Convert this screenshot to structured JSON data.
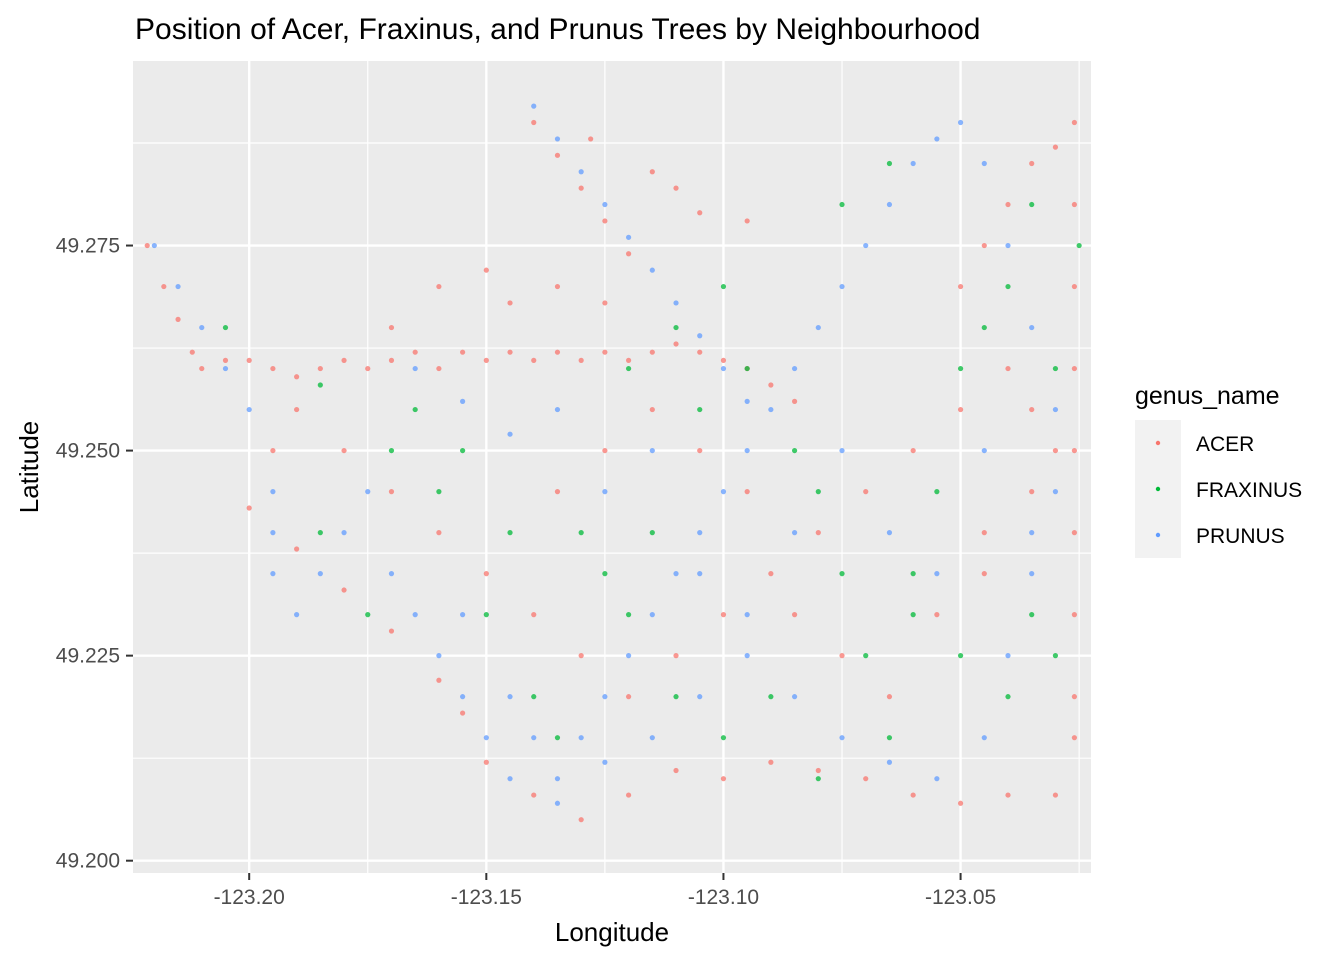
{
  "chart_data": {
    "type": "scatter",
    "title": "Position of Acer, Fraxinus, and Prunus Trees by Neighbourhood",
    "xlabel": "Longitude",
    "ylabel": "Latitude",
    "xlim": [
      -123.2245,
      -123.0225
    ],
    "ylim": [
      49.1985,
      49.2975
    ],
    "x_ticks": [
      {
        "value": -123.2,
        "label": "-123.20"
      },
      {
        "value": -123.15,
        "label": "-123.15"
      },
      {
        "value": -123.1,
        "label": "-123.10"
      },
      {
        "value": -123.05,
        "label": "-123.05"
      }
    ],
    "y_ticks": [
      {
        "value": 49.2,
        "label": "49.200"
      },
      {
        "value": 49.225,
        "label": "49.225"
      },
      {
        "value": 49.25,
        "label": "49.250"
      },
      {
        "value": 49.275,
        "label": "49.275"
      }
    ],
    "grid": true,
    "legend": {
      "title": "genus_name",
      "placement": "right",
      "entries": [
        "ACER",
        "FRAXINUS",
        "PRUNUS"
      ]
    },
    "series": [
      {
        "name": "ACER",
        "color": "#F8766D",
        "points": [
          [
            -123.2215,
            49.275
          ],
          [
            -123.218,
            49.27
          ],
          [
            -123.215,
            49.266
          ],
          [
            -123.212,
            49.262
          ],
          [
            -123.21,
            49.26
          ],
          [
            -123.205,
            49.261
          ],
          [
            -123.2,
            49.261
          ],
          [
            -123.195,
            49.26
          ],
          [
            -123.19,
            49.259
          ],
          [
            -123.185,
            49.26
          ],
          [
            -123.18,
            49.261
          ],
          [
            -123.175,
            49.26
          ],
          [
            -123.17,
            49.261
          ],
          [
            -123.165,
            49.262
          ],
          [
            -123.16,
            49.26
          ],
          [
            -123.155,
            49.262
          ],
          [
            -123.15,
            49.261
          ],
          [
            -123.145,
            49.262
          ],
          [
            -123.14,
            49.261
          ],
          [
            -123.135,
            49.262
          ],
          [
            -123.13,
            49.261
          ],
          [
            -123.125,
            49.262
          ],
          [
            -123.12,
            49.261
          ],
          [
            -123.115,
            49.262
          ],
          [
            -123.11,
            49.263
          ],
          [
            -123.105,
            49.262
          ],
          [
            -123.1,
            49.261
          ],
          [
            -123.095,
            49.26
          ],
          [
            -123.09,
            49.258
          ],
          [
            -123.085,
            49.256
          ],
          [
            -123.14,
            49.29
          ],
          [
            -123.135,
            49.286
          ],
          [
            -123.13,
            49.282
          ],
          [
            -123.125,
            49.278
          ],
          [
            -123.12,
            49.274
          ],
          [
            -123.128,
            49.288
          ],
          [
            -123.115,
            49.284
          ],
          [
            -123.11,
            49.282
          ],
          [
            -123.105,
            49.279
          ],
          [
            -123.095,
            49.278
          ],
          [
            -123.05,
            49.27
          ],
          [
            -123.045,
            49.275
          ],
          [
            -123.04,
            49.28
          ],
          [
            -123.035,
            49.285
          ],
          [
            -123.03,
            49.287
          ],
          [
            -123.026,
            49.29
          ],
          [
            -123.026,
            49.28
          ],
          [
            -123.026,
            49.27
          ],
          [
            -123.026,
            49.26
          ],
          [
            -123.026,
            49.25
          ],
          [
            -123.026,
            49.24
          ],
          [
            -123.026,
            49.23
          ],
          [
            -123.026,
            49.22
          ],
          [
            -123.026,
            49.215
          ],
          [
            -123.03,
            49.208
          ],
          [
            -123.04,
            49.208
          ],
          [
            -123.05,
            49.207
          ],
          [
            -123.06,
            49.208
          ],
          [
            -123.07,
            49.21
          ],
          [
            -123.08,
            49.211
          ],
          [
            -123.09,
            49.212
          ],
          [
            -123.1,
            49.21
          ],
          [
            -123.11,
            49.211
          ],
          [
            -123.12,
            49.208
          ],
          [
            -123.13,
            49.205
          ],
          [
            -123.14,
            49.208
          ],
          [
            -123.15,
            49.212
          ],
          [
            -123.155,
            49.218
          ],
          [
            -123.16,
            49.222
          ],
          [
            -123.17,
            49.228
          ],
          [
            -123.18,
            49.233
          ],
          [
            -123.19,
            49.238
          ],
          [
            -123.2,
            49.243
          ],
          [
            -123.195,
            49.25
          ],
          [
            -123.19,
            49.255
          ],
          [
            -123.18,
            49.25
          ],
          [
            -123.17,
            49.245
          ],
          [
            -123.16,
            49.24
          ],
          [
            -123.15,
            49.235
          ],
          [
            -123.14,
            49.23
          ],
          [
            -123.13,
            49.225
          ],
          [
            -123.12,
            49.22
          ],
          [
            -123.11,
            49.225
          ],
          [
            -123.1,
            49.23
          ],
          [
            -123.09,
            49.235
          ],
          [
            -123.08,
            49.24
          ],
          [
            -123.07,
            49.245
          ],
          [
            -123.06,
            49.25
          ],
          [
            -123.05,
            49.255
          ],
          [
            -123.04,
            49.26
          ],
          [
            -123.135,
            49.245
          ],
          [
            -123.125,
            49.25
          ],
          [
            -123.115,
            49.255
          ],
          [
            -123.105,
            49.25
          ],
          [
            -123.095,
            49.245
          ],
          [
            -123.085,
            49.23
          ],
          [
            -123.075,
            49.225
          ],
          [
            -123.065,
            49.22
          ],
          [
            -123.055,
            49.23
          ],
          [
            -123.045,
            49.235
          ],
          [
            -123.035,
            49.245
          ],
          [
            -123.03,
            49.25
          ],
          [
            -123.035,
            49.255
          ],
          [
            -123.045,
            49.24
          ],
          [
            -123.16,
            49.27
          ],
          [
            -123.17,
            49.265
          ],
          [
            -123.15,
            49.272
          ],
          [
            -123.145,
            49.268
          ],
          [
            -123.135,
            49.27
          ],
          [
            -123.125,
            49.268
          ]
        ]
      },
      {
        "name": "FRAXINUS",
        "color": "#00BA38",
        "points": [
          [
            -123.205,
            49.265
          ],
          [
            -123.185,
            49.258
          ],
          [
            -123.17,
            49.25
          ],
          [
            -123.165,
            49.255
          ],
          [
            -123.16,
            49.245
          ],
          [
            -123.15,
            49.23
          ],
          [
            -123.14,
            49.22
          ],
          [
            -123.135,
            49.215
          ],
          [
            -123.125,
            49.235
          ],
          [
            -123.115,
            49.24
          ],
          [
            -123.105,
            49.255
          ],
          [
            -123.095,
            49.26
          ],
          [
            -123.085,
            49.25
          ],
          [
            -123.08,
            49.245
          ],
          [
            -123.075,
            49.235
          ],
          [
            -123.07,
            49.225
          ],
          [
            -123.065,
            49.215
          ],
          [
            -123.06,
            49.235
          ],
          [
            -123.055,
            49.245
          ],
          [
            -123.05,
            49.26
          ],
          [
            -123.045,
            49.265
          ],
          [
            -123.04,
            49.27
          ],
          [
            -123.035,
            49.28
          ],
          [
            -123.03,
            49.26
          ],
          [
            -123.025,
            49.275
          ],
          [
            -123.035,
            49.23
          ],
          [
            -123.03,
            49.225
          ],
          [
            -123.04,
            49.22
          ],
          [
            -123.05,
            49.225
          ],
          [
            -123.06,
            49.23
          ],
          [
            -123.075,
            49.28
          ],
          [
            -123.065,
            49.285
          ],
          [
            -123.1,
            49.27
          ],
          [
            -123.11,
            49.265
          ],
          [
            -123.12,
            49.26
          ],
          [
            -123.13,
            49.24
          ],
          [
            -123.145,
            49.24
          ],
          [
            -123.155,
            49.25
          ],
          [
            -123.175,
            49.23
          ],
          [
            -123.185,
            49.24
          ],
          [
            -123.09,
            49.22
          ],
          [
            -123.1,
            49.215
          ],
          [
            -123.11,
            49.22
          ],
          [
            -123.12,
            49.23
          ],
          [
            -123.08,
            49.21
          ]
        ]
      },
      {
        "name": "PRUNUS",
        "color": "#619CFF",
        "points": [
          [
            -123.22,
            49.275
          ],
          [
            -123.215,
            49.27
          ],
          [
            -123.21,
            49.265
          ],
          [
            -123.205,
            49.26
          ],
          [
            -123.2,
            49.255
          ],
          [
            -123.195,
            49.245
          ],
          [
            -123.195,
            49.235
          ],
          [
            -123.19,
            49.23
          ],
          [
            -123.185,
            49.235
          ],
          [
            -123.18,
            49.24
          ],
          [
            -123.175,
            49.245
          ],
          [
            -123.17,
            49.235
          ],
          [
            -123.165,
            49.23
          ],
          [
            -123.16,
            49.225
          ],
          [
            -123.155,
            49.22
          ],
          [
            -123.15,
            49.215
          ],
          [
            -123.145,
            49.21
          ],
          [
            -123.14,
            49.215
          ],
          [
            -123.135,
            49.21
          ],
          [
            -123.13,
            49.215
          ],
          [
            -123.125,
            49.22
          ],
          [
            -123.12,
            49.225
          ],
          [
            -123.115,
            49.23
          ],
          [
            -123.11,
            49.235
          ],
          [
            -123.105,
            49.24
          ],
          [
            -123.1,
            49.245
          ],
          [
            -123.095,
            49.25
          ],
          [
            -123.09,
            49.255
          ],
          [
            -123.085,
            49.26
          ],
          [
            -123.08,
            49.265
          ],
          [
            -123.075,
            49.27
          ],
          [
            -123.07,
            49.275
          ],
          [
            -123.065,
            49.28
          ],
          [
            -123.06,
            49.285
          ],
          [
            -123.055,
            49.288
          ],
          [
            -123.05,
            49.29
          ],
          [
            -123.045,
            49.285
          ],
          [
            -123.04,
            49.275
          ],
          [
            -123.035,
            49.265
          ],
          [
            -123.03,
            49.255
          ],
          [
            -123.03,
            49.245
          ],
          [
            -123.035,
            49.235
          ],
          [
            -123.04,
            49.225
          ],
          [
            -123.045,
            49.215
          ],
          [
            -123.055,
            49.21
          ],
          [
            -123.065,
            49.212
          ],
          [
            -123.075,
            49.215
          ],
          [
            -123.085,
            49.22
          ],
          [
            -123.095,
            49.225
          ],
          [
            -123.105,
            49.22
          ],
          [
            -123.115,
            49.215
          ],
          [
            -123.125,
            49.212
          ],
          [
            -123.135,
            49.207
          ],
          [
            -123.145,
            49.22
          ],
          [
            -123.155,
            49.23
          ],
          [
            -123.14,
            49.292
          ],
          [
            -123.135,
            49.288
          ],
          [
            -123.13,
            49.284
          ],
          [
            -123.125,
            49.28
          ],
          [
            -123.12,
            49.276
          ],
          [
            -123.115,
            49.272
          ],
          [
            -123.11,
            49.268
          ],
          [
            -123.105,
            49.264
          ],
          [
            -123.1,
            49.26
          ],
          [
            -123.095,
            49.256
          ],
          [
            -123.165,
            49.26
          ],
          [
            -123.155,
            49.256
          ],
          [
            -123.145,
            49.252
          ],
          [
            -123.135,
            49.255
          ],
          [
            -123.125,
            49.245
          ],
          [
            -123.115,
            49.25
          ],
          [
            -123.105,
            49.235
          ],
          [
            -123.095,
            49.23
          ],
          [
            -123.085,
            49.24
          ],
          [
            -123.075,
            49.25
          ],
          [
            -123.065,
            49.24
          ],
          [
            -123.055,
            49.235
          ],
          [
            -123.045,
            49.25
          ],
          [
            -123.035,
            49.24
          ],
          [
            -123.195,
            49.24
          ]
        ]
      }
    ]
  }
}
